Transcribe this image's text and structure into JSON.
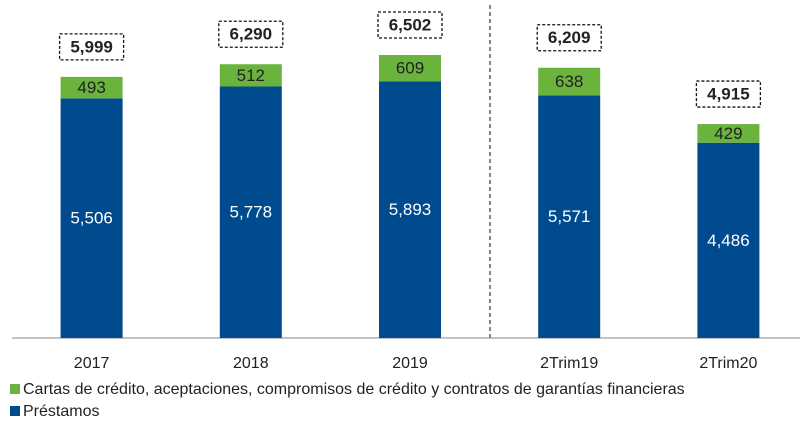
{
  "chart_data": {
    "type": "stacked_bar",
    "categories": [
      "2017",
      "2018",
      "2019",
      "2Trim19",
      "2Trim20"
    ],
    "series": [
      {
        "name": "Préstamos",
        "color": "#004b8d",
        "values": [
          5506,
          5778,
          5893,
          5571,
          4486
        ],
        "value_labels": [
          "5,506",
          "5,778",
          "5,893",
          "5,571",
          "4,486"
        ]
      },
      {
        "name": "Cartas de crédito, aceptaciones, compromisos de crédito y contratos de garantías financieras",
        "color": "#6ab43e",
        "values": [
          493,
          512,
          609,
          638,
          429
        ]
      }
    ],
    "totals": [
      5999,
      6290,
      6502,
      6209,
      4915
    ],
    "total_labels": [
      "5,999",
      "6,290",
      "6,502",
      "6,209",
      "4,915"
    ]
  }
}
